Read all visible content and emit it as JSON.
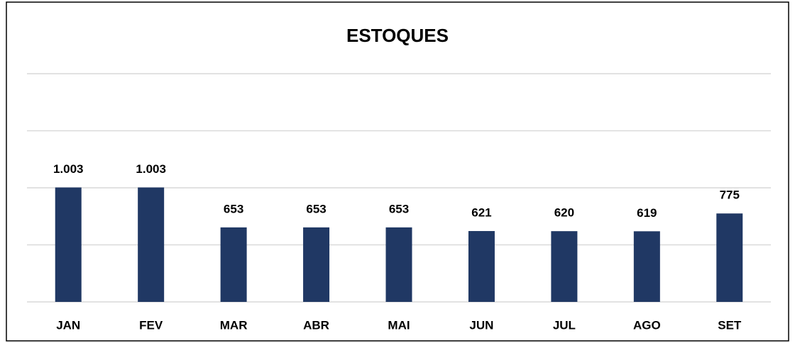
{
  "chart_data": {
    "type": "bar",
    "title": "ESTOQUES",
    "categories": [
      "JAN",
      "FEV",
      "MAR",
      "ABR",
      "MAI",
      "JUN",
      "JUL",
      "AGO",
      "SET"
    ],
    "values": [
      1003,
      1003,
      653,
      653,
      653,
      621,
      620,
      619,
      775
    ],
    "value_labels": [
      "1.003",
      "1.003",
      "653",
      "653",
      "653",
      "621",
      "620",
      "619",
      "775"
    ],
    "color": "#203864",
    "ylim": [
      0,
      2000
    ],
    "yticks": [
      0,
      500,
      1000,
      1500,
      2000
    ],
    "grid": true
  }
}
